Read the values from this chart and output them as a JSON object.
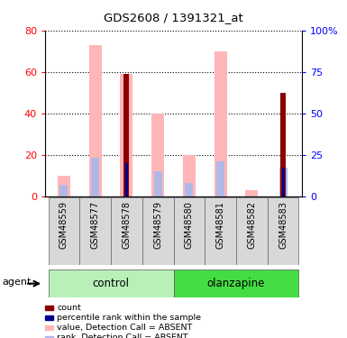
{
  "title": "GDS2608 / 1391321_at",
  "samples": [
    "GSM48559",
    "GSM48577",
    "GSM48578",
    "GSM48579",
    "GSM48580",
    "GSM48581",
    "GSM48582",
    "GSM48583"
  ],
  "value_absent": [
    10,
    73,
    59,
    40,
    20,
    70,
    3,
    0
  ],
  "rank_absent": [
    7,
    23,
    0,
    15,
    8,
    21,
    0,
    17
  ],
  "count": [
    0,
    0,
    59,
    0,
    0,
    0,
    0,
    50
  ],
  "pct_rank": [
    0,
    0,
    20,
    0,
    0,
    0,
    0,
    17
  ],
  "ylim_left": [
    0,
    80
  ],
  "ylim_right": [
    0,
    100
  ],
  "yticks_left": [
    0,
    20,
    40,
    60,
    80
  ],
  "yticks_right": [
    0,
    25,
    50,
    75,
    100
  ],
  "yticklabels_right": [
    "0",
    "25",
    "50",
    "75",
    "100%"
  ],
  "color_count": "#8b0000",
  "color_pct": "#00008b",
  "color_value_absent": "#ffb6b6",
  "color_rank_absent": "#b0b8e8",
  "color_group_light": "#b8f0b8",
  "color_group_dark": "#44dd44",
  "legend_items": [
    {
      "color": "#8b0000",
      "label": "count"
    },
    {
      "color": "#00008b",
      "label": "percentile rank within the sample"
    },
    {
      "color": "#ffb6b6",
      "label": "value, Detection Call = ABSENT"
    },
    {
      "color": "#b0b8e8",
      "label": "rank, Detection Call = ABSENT"
    }
  ]
}
